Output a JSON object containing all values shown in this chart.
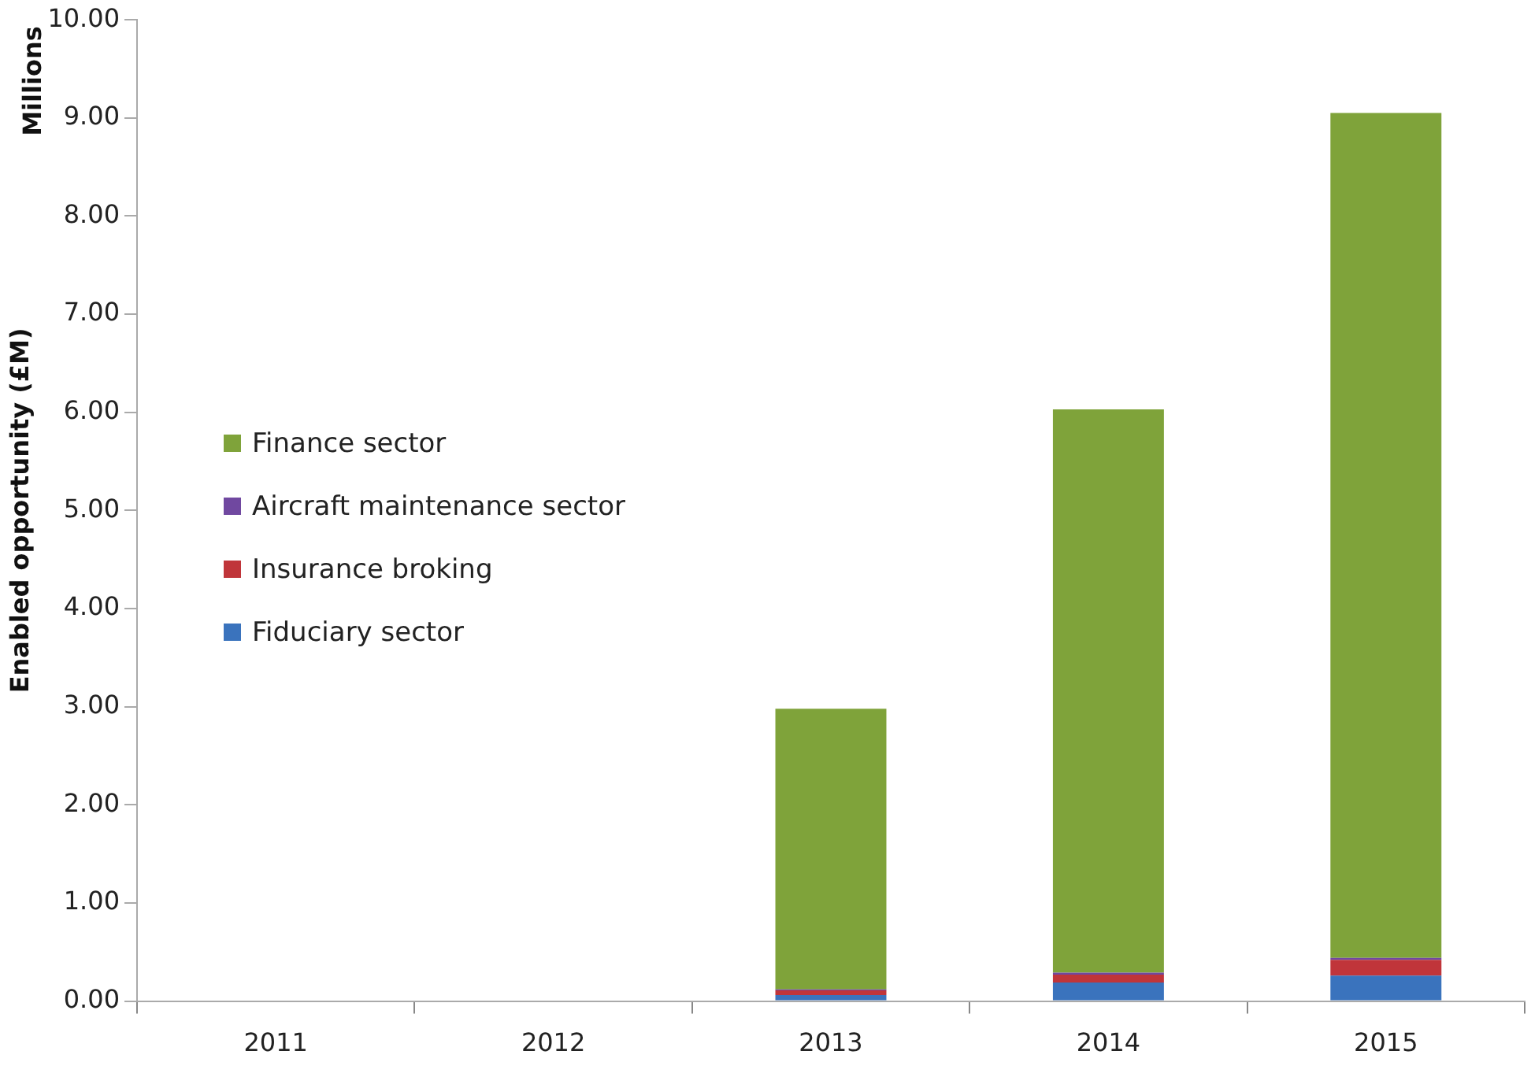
{
  "chart_data": {
    "type": "bar",
    "stacked": true,
    "ylabel": "Enabled opportunity (£M)",
    "annotations": [
      "Millions"
    ],
    "categories": [
      "2011",
      "2012",
      "2013",
      "2014",
      "2015"
    ],
    "series": [
      {
        "name": "Fiduciary sector",
        "color": "#3a73bd",
        "values": [
          0,
          0,
          0.06,
          0.19,
          0.26
        ]
      },
      {
        "name": "Insurance broking",
        "color": "#c0353a",
        "values": [
          0,
          0,
          0.05,
          0.08,
          0.16
        ]
      },
      {
        "name": "Aircraft maintenance sector",
        "color": "#7048a0",
        "values": [
          0,
          0,
          0.01,
          0.02,
          0.02
        ]
      },
      {
        "name": "Finance sector",
        "color": "#7fa33a",
        "values": [
          0,
          0,
          2.86,
          5.74,
          8.61
        ]
      }
    ],
    "ylim": [
      0,
      10
    ],
    "yticks": [
      {
        "value": 0,
        "label": "0.00"
      },
      {
        "value": 1,
        "label": "1.00"
      },
      {
        "value": 2,
        "label": "2.00"
      },
      {
        "value": 3,
        "label": "3.00"
      },
      {
        "value": 4,
        "label": "4.00"
      },
      {
        "value": 5,
        "label": "5.00"
      },
      {
        "value": 6,
        "label": "6.00"
      },
      {
        "value": 7,
        "label": "7.00"
      },
      {
        "value": 8,
        "label": "8.00"
      },
      {
        "value": 9,
        "label": "9.00"
      },
      {
        "value": 10,
        "label": "10.00"
      }
    ],
    "grid": false,
    "legend": "left"
  }
}
